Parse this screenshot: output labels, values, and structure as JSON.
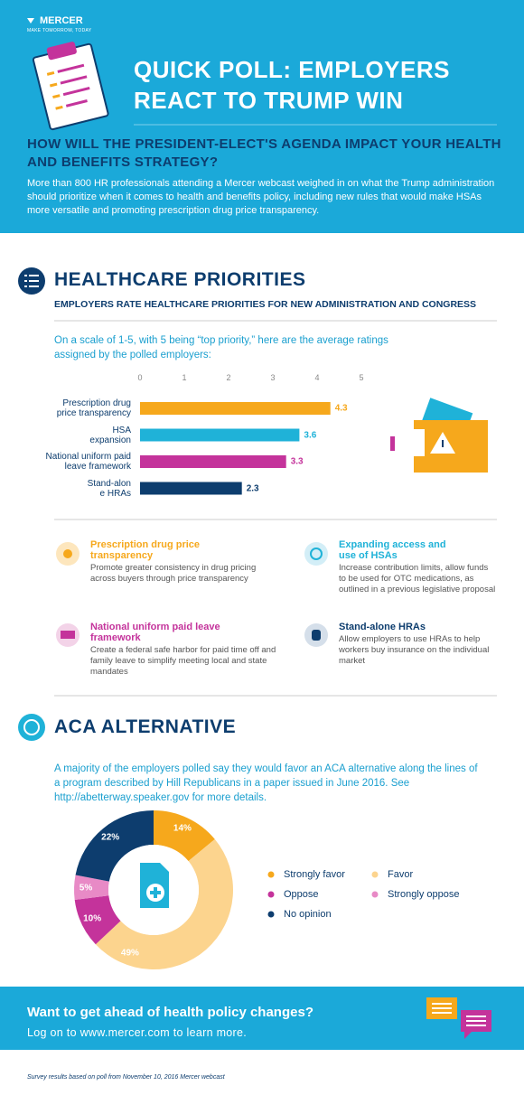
{
  "header": {
    "brand": "MERCER",
    "tagline": "MAKE TOMORROW, TODAY",
    "title": "QUICK POLL: EMPLOYERS REACT TO TRUMP WIN",
    "subtitle": "HOW WILL THE PRESIDENT-ELECT'S AGENDA IMPACT YOUR HEALTH AND BENEFITS STRATEGY?",
    "intro": "More than 800 HR professionals attending a Mercer webcast weighed in on what the Trump administration should prioritize when it comes to health and benefits policy, including new rules that would make HSAs more versatile and promoting prescription drug price transparency."
  },
  "healthcare": {
    "heading": "HEALTHCARE PRIORITIES",
    "subheading": "EMPLOYERS RATE HEALTHCARE PRIORITIES FOR NEW ADMINISTRATION AND CONGRESS",
    "note": "On a scale of 1-5, with 5 being “top priority,” here are the average ratings assigned by the polled employers:",
    "items": [
      {
        "title": "Prescription drug price transparency",
        "text": "Promote greater consistency in drug pricing across buyers through price transparency"
      },
      {
        "title": "Expanding access and use of HSAs",
        "text": "Increase contribution limits, allow funds to be used for OTC medications, as outlined in a previous legislative proposal"
      },
      {
        "title": "National uniform paid leave framework",
        "text": "Create a federal safe harbor for paid time off and family leave to simplify meeting local and state mandates"
      },
      {
        "title": "Stand-alone HRAs",
        "text": "Allow employers to use HRAs to help workers buy insurance on the individual market"
      }
    ]
  },
  "aca": {
    "heading": "ACA ALTERNATIVE",
    "text": "A majority of the employers polled say they would favor an ACA alternative along the lines of a program described by Hill Republicans in a paper issued in June 2016. See http://abetterway.speaker.gov for more details."
  },
  "chart_data": [
    {
      "type": "bar",
      "orientation": "horizontal",
      "categories": [
        "Prescription drug\nprice transparency",
        "HSA\nexpansion",
        "National uniform paid\nleave framework",
        "Stand-alon\ne HRAs"
      ],
      "values": [
        4.3,
        3.6,
        3.3,
        2.3
      ],
      "colors": [
        "#f6a81c",
        "#1fb2d8",
        "#c4339b",
        "#0d3d6e"
      ],
      "xlim": [
        0,
        5
      ],
      "xticks": [
        0,
        1,
        2,
        3,
        4,
        5
      ],
      "grid": false
    },
    {
      "type": "pie",
      "donut": true,
      "categories": [
        "Strongly favor",
        "Favor",
        "Oppose",
        "Strongly oppose",
        "No opinion"
      ],
      "values": [
        14,
        49,
        10,
        5,
        22
      ],
      "value_labels": [
        "14%",
        "49%",
        "10%",
        "5%",
        "22%"
      ],
      "colors": [
        "#f6a81c",
        "#fcd48e",
        "#c4339b",
        "#e88ac6",
        "#0d3d6e"
      ]
    }
  ],
  "footer": {
    "cta": "Want to get ahead of health policy changes?",
    "link": "Log on to www.mercer.com to learn more.",
    "source": "Survey results based on poll from November 10, 2016 Mercer webcast"
  }
}
